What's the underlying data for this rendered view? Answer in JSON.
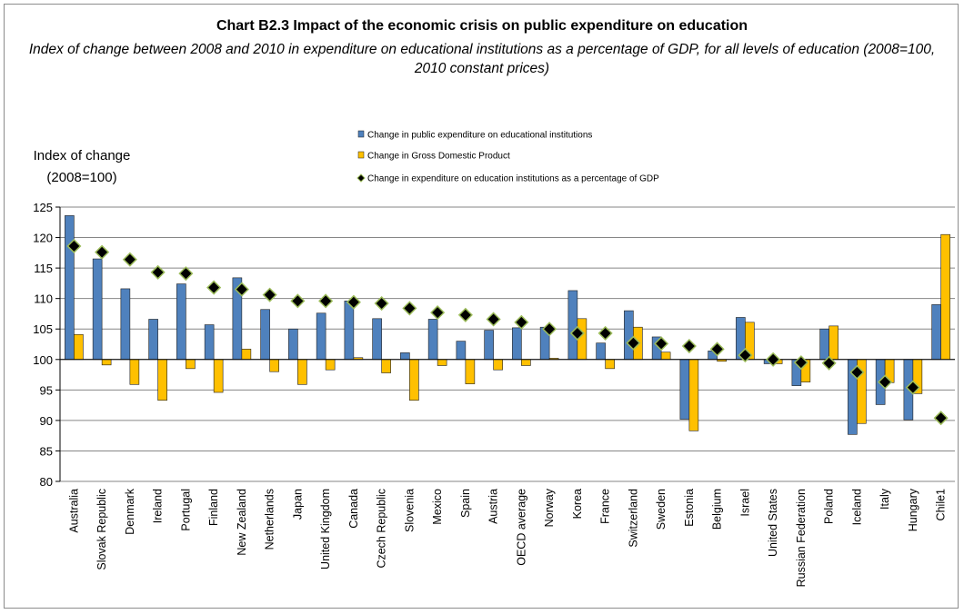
{
  "title": "Chart B2.3  Impact of the economic crisis on public expenditure on education",
  "subtitle": "Index of change between 2008 and 2010 in expenditure on educational institutions as a percentage of GDP, for all levels of education (2008=100, 2010 constant prices)",
  "ylabel_lines": [
    "Index of change",
    "(2008=100)"
  ],
  "colors": {
    "public": "#4f81bd",
    "gdp": "#ffc000",
    "marker": "#000000",
    "marker_edge": "#9bbb59",
    "grid": "#868686"
  },
  "chart_data": {
    "type": "bar",
    "ylim": [
      80,
      125
    ],
    "yticks": [
      80,
      85,
      90,
      95,
      100,
      105,
      110,
      115,
      120,
      125
    ],
    "baseline": 100,
    "grid": true,
    "legend_position": "top-center",
    "categories": [
      "Australia",
      "Slovak Republic",
      "Denmark",
      "Ireland",
      "Portugal",
      "Finland",
      "New Zealand",
      "Netherlands",
      "Japan",
      "United Kingdom",
      "Canada",
      "Czech Republic",
      "Slovenia",
      "Mexico",
      "Spain",
      "Austria",
      "OECD average",
      "Norway",
      "Korea",
      "France",
      "Switzerland",
      "Sweden",
      "Estonia",
      "Belgium",
      "Israel",
      "United States",
      "Russian Federation",
      "Poland",
      "Iceland",
      "Italy",
      "Hungary",
      "Chile1"
    ],
    "series": [
      {
        "name": "Change in public expenditure on educational institutions",
        "kind": "bar",
        "values": [
          123.6,
          116.5,
          111.6,
          106.6,
          112.4,
          105.7,
          113.4,
          108.2,
          105.0,
          107.6,
          109.6,
          106.7,
          101.1,
          106.6,
          103.0,
          104.8,
          105.2,
          105.3,
          111.3,
          102.7,
          108.0,
          103.7,
          90.2,
          101.4,
          106.9,
          99.3,
          95.7,
          105.0,
          87.7,
          92.6,
          90.1,
          109.0
        ]
      },
      {
        "name": "Change in Gross Domestic Product",
        "kind": "bar",
        "values": [
          104.1,
          99.1,
          95.9,
          93.3,
          98.5,
          94.6,
          101.7,
          98.0,
          95.9,
          98.3,
          100.3,
          97.8,
          93.3,
          99.0,
          96.0,
          98.3,
          99.0,
          100.2,
          106.7,
          98.5,
          105.3,
          101.2,
          88.3,
          99.7,
          106.1,
          99.3,
          96.3,
          105.5,
          89.5,
          96.2,
          94.4,
          120.5
        ]
      },
      {
        "name": "Change in expenditure on education institutions as a percentage of GDP",
        "kind": "marker",
        "values": [
          118.6,
          117.6,
          116.4,
          114.3,
          114.1,
          111.8,
          111.5,
          110.6,
          109.6,
          109.6,
          109.4,
          109.2,
          108.4,
          107.7,
          107.3,
          106.6,
          106.1,
          105.0,
          104.3,
          104.3,
          102.7,
          102.6,
          102.2,
          101.7,
          100.7,
          100.0,
          99.5,
          99.4,
          97.9,
          96.3,
          95.4,
          90.4
        ]
      }
    ]
  }
}
